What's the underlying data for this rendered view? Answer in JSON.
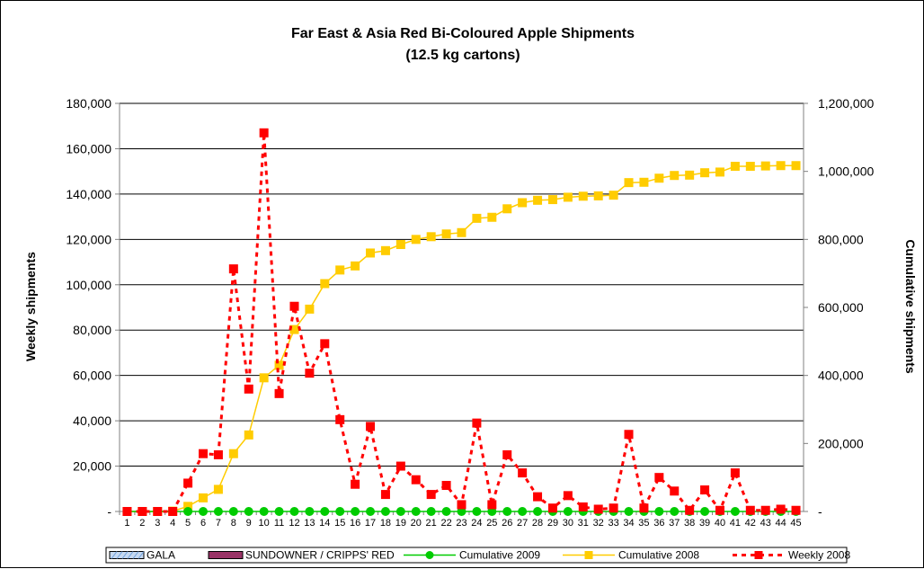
{
  "chart_data": {
    "type": "line",
    "title": "Far East & Asia Red Bi-Coloured Apple Shipments",
    "subtitle": "(12.5 kg cartons)",
    "ylabel": "Weekly shipments",
    "y2label": "Cumulative shipments",
    "x": [
      1,
      2,
      3,
      4,
      5,
      6,
      7,
      8,
      9,
      10,
      11,
      12,
      13,
      14,
      15,
      16,
      17,
      18,
      19,
      20,
      21,
      22,
      23,
      24,
      25,
      26,
      27,
      28,
      29,
      30,
      31,
      32,
      33,
      34,
      35,
      36,
      37,
      38,
      39,
      40,
      41,
      42,
      43,
      44,
      45
    ],
    "ylim": [
      0,
      180000
    ],
    "y2lim": [
      0,
      1200000
    ],
    "yticks": [
      "-",
      "20,000",
      "40,000",
      "60,000",
      "80,000",
      "100,000",
      "120,000",
      "140,000",
      "160,000",
      "180,000"
    ],
    "y2ticks": [
      "-",
      "200,000",
      "400,000",
      "600,000",
      "800,000",
      "1,000,000",
      "1,200,000"
    ],
    "grid": true,
    "legend_position": "bottom",
    "series": [
      {
        "name": "GALA",
        "kind": "bar",
        "axis": "left",
        "color": "#9ab8e0",
        "values": [
          0,
          0,
          0,
          0,
          0,
          0,
          0,
          0,
          0,
          0,
          0,
          0,
          0,
          0,
          0,
          0,
          0,
          0,
          0,
          0,
          0,
          0,
          0,
          0,
          0,
          0,
          0,
          0,
          0,
          0,
          0,
          0,
          0,
          0,
          0,
          0,
          0,
          0,
          0,
          0,
          0,
          0,
          0,
          0,
          0
        ]
      },
      {
        "name": "SUNDOWNER / CRIPPS' RED",
        "kind": "bar",
        "axis": "left",
        "color": "#993366",
        "values": [
          0,
          0,
          0,
          0,
          0,
          0,
          0,
          0,
          0,
          0,
          0,
          0,
          0,
          0,
          0,
          0,
          0,
          0,
          0,
          0,
          0,
          0,
          0,
          0,
          0,
          0,
          0,
          0,
          0,
          0,
          0,
          0,
          0,
          0,
          0,
          0,
          0,
          0,
          0,
          0,
          0,
          0,
          0,
          0,
          0
        ]
      },
      {
        "name": "Cumulative 2009",
        "kind": "line",
        "axis": "right",
        "color": "#00cc00",
        "marker": "circle",
        "values": [
          0,
          0,
          0,
          0,
          0,
          0,
          0,
          0,
          0,
          0,
          0,
          0,
          0,
          0,
          0,
          0,
          0,
          0,
          0,
          0,
          0,
          0,
          0,
          0,
          0,
          0,
          0,
          0,
          0,
          0,
          0,
          0,
          0,
          0,
          0,
          0,
          0,
          0,
          0,
          0,
          0,
          0,
          0,
          0,
          0
        ]
      },
      {
        "name": "Cumulative 2008",
        "kind": "line",
        "axis": "right",
        "color": "#ffcc00",
        "marker": "square",
        "values": [
          0,
          0,
          0,
          1000,
          15000,
          40000,
          65000,
          170000,
          225000,
          393000,
          430000,
          535000,
          595000,
          670000,
          710000,
          722000,
          760000,
          767000,
          785000,
          800000,
          808000,
          816000,
          820000,
          862000,
          865000,
          890000,
          908000,
          915000,
          917000,
          924000,
          927000,
          928000,
          930000,
          967000,
          968000,
          980000,
          988000,
          989000,
          996000,
          998000,
          1015000,
          1015000,
          1016000,
          1017000,
          1017000
        ]
      },
      {
        "name": "Weekly 2008",
        "kind": "line",
        "axis": "left",
        "color": "#ff0000",
        "dash": true,
        "marker": "square",
        "values": [
          0,
          0,
          0,
          0,
          12500,
          25500,
          25000,
          107000,
          54000,
          167000,
          52000,
          90500,
          61000,
          74000,
          40500,
          12000,
          37500,
          7500,
          20000,
          14000,
          7500,
          11500,
          3000,
          39000,
          3000,
          25000,
          17000,
          6500,
          1500,
          7000,
          2000,
          1000,
          1500,
          34000,
          1500,
          15000,
          9000,
          500,
          9500,
          500,
          17000,
          500,
          500,
          1000,
          500
        ]
      }
    ]
  }
}
